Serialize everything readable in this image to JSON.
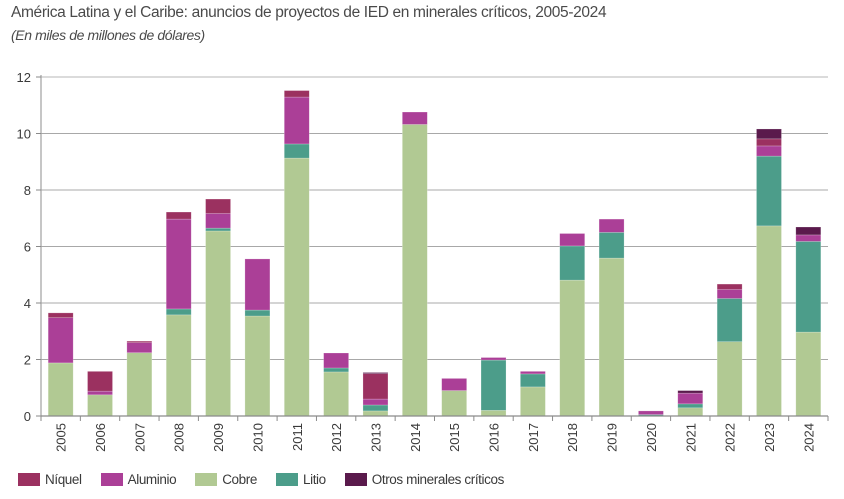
{
  "header": {
    "title": "América Latina y el Caribe: anuncios de proyectos de IED en minerales críticos, 2005-2024",
    "subtitle": "(En miles de millones de dólares)"
  },
  "chart_data": {
    "type": "bar",
    "stacked": true,
    "title": "América Latina y el Caribe: anuncios de proyectos de IED en minerales críticos, 2005-2024",
    "subtitle": "(En miles de millones de dólares)",
    "xlabel": "",
    "ylabel": "",
    "ylim": [
      0,
      12
    ],
    "yticks": [
      0,
      2,
      4,
      6,
      8,
      10,
      12
    ],
    "grid": true,
    "legend_position": "bottom-left",
    "categories": [
      "2005",
      "2006",
      "2007",
      "2008",
      "2009",
      "2010",
      "2011",
      "2012",
      "2013",
      "2014",
      "2015",
      "2016",
      "2017",
      "2018",
      "2019",
      "2020",
      "2021",
      "2022",
      "2023",
      "2024"
    ],
    "series": [
      {
        "name": "Cobre",
        "color": "#B1C993",
        "values": [
          1.88,
          0.75,
          2.24,
          3.58,
          6.55,
          3.54,
          9.13,
          1.56,
          0.18,
          10.32,
          0.9,
          0.2,
          1.03,
          4.81,
          5.59,
          0.01,
          0.29,
          2.63,
          6.73,
          2.97
        ]
      },
      {
        "name": "Litio",
        "color": "#4C9D8A",
        "values": [
          0,
          0,
          0,
          0.21,
          0.1,
          0.21,
          0.5,
          0.14,
          0.21,
          0,
          0,
          1.78,
          0.46,
          1.21,
          0.91,
          0.04,
          0.14,
          1.53,
          2.47,
          3.21
        ]
      },
      {
        "name": "Aluminio",
        "color": "#AB3F97",
        "values": [
          1.6,
          0.13,
          0.36,
          3.18,
          0.52,
          1.81,
          1.66,
          0.53,
          0.21,
          0.44,
          0.43,
          0.09,
          0.09,
          0.44,
          0.47,
          0.13,
          0.38,
          0.32,
          0.36,
          0.23
        ]
      },
      {
        "name": "Níquel",
        "color": "#9B3160",
        "values": [
          0.17,
          0.7,
          0.05,
          0.25,
          0.51,
          0,
          0.23,
          0,
          0.9,
          0,
          0,
          0,
          0,
          0,
          0,
          0,
          0,
          0.19,
          0.25,
          0
        ]
      },
      {
        "name": "Otros minerales críticos",
        "color": "#5A1A4C",
        "values": [
          0,
          0,
          0,
          0,
          0,
          0,
          0,
          0,
          0.04,
          0,
          0,
          0,
          0,
          0,
          0,
          0,
          0.09,
          0,
          0.35,
          0.28
        ]
      }
    ],
    "legend_order": [
      "Níquel",
      "Aluminio",
      "Cobre",
      "Litio",
      "Otros minerales críticos"
    ]
  }
}
